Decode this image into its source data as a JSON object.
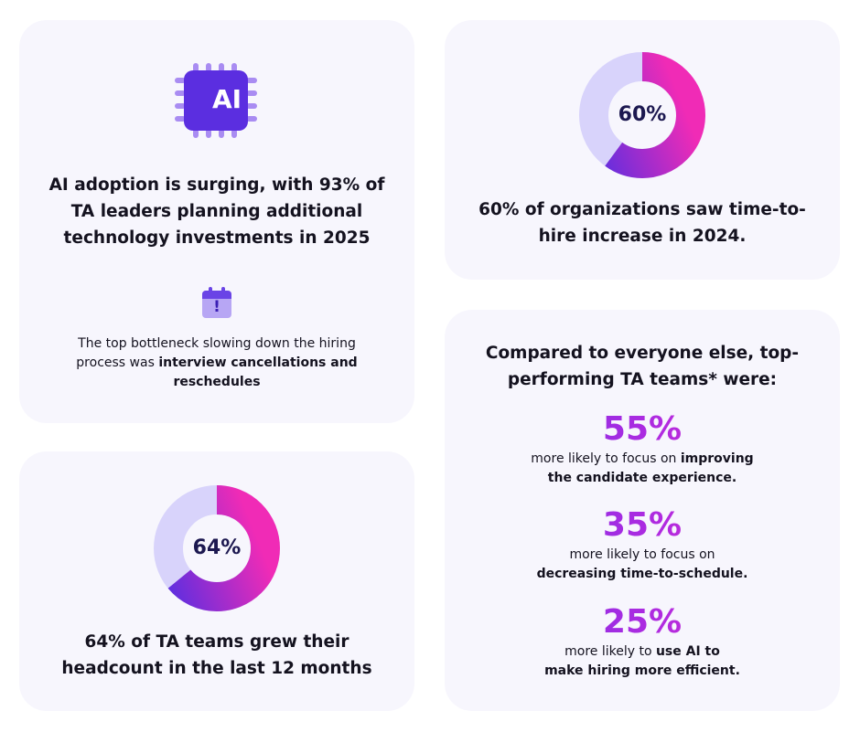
{
  "ai_card": {
    "chip_text": "AI",
    "headline_lines": [
      "AI adoption is surging, with 93% of",
      "TA leaders planning additional",
      "technology investments in 2025"
    ],
    "bottleneck_line1": "The top bottleneck slowing down the hiring",
    "bottleneck_line2_plain": "process was ",
    "bottleneck_line2_bold": "interview cancellations and",
    "bottleneck_line3_bold": "reschedules",
    "calendar_alert_mark": "!"
  },
  "headcount_card": {
    "donut_label": "64%",
    "donut_percent": 64,
    "caption_lines": [
      "64% of TA teams grew their",
      "headcount in the last 12 months"
    ]
  },
  "time_to_hire_card": {
    "donut_label": "60%",
    "donut_percent": 60,
    "caption_lines": [
      "60% of organizations saw time-to-",
      "hire increase in 2024."
    ]
  },
  "top_performers_card": {
    "title_lines": [
      "Compared to everyone else, top-",
      "performing TA teams* were:"
    ],
    "stats": [
      {
        "value": "55%",
        "line1_plain": "more likely to focus on ",
        "line1_bold": "improving",
        "line2_bold": "the candidate experience."
      },
      {
        "value": "35%",
        "line1_plain": "more likely to focus on",
        "line1_bold": "",
        "line2_bold": "decreasing time-to-schedule."
      },
      {
        "value": "25%",
        "line1_plain": "more likely to ",
        "line1_bold": "use AI to",
        "line2_bold": "make hiring more efficient."
      }
    ]
  },
  "colors": {
    "card_bg": "#f7f6fd",
    "donut_track": "#d8d3fb",
    "gradient_start": "#5b2ee0",
    "gradient_end": "#f02bb6",
    "chip_purple": "#5b2ee0",
    "chip_pins": "#a98cf2"
  }
}
